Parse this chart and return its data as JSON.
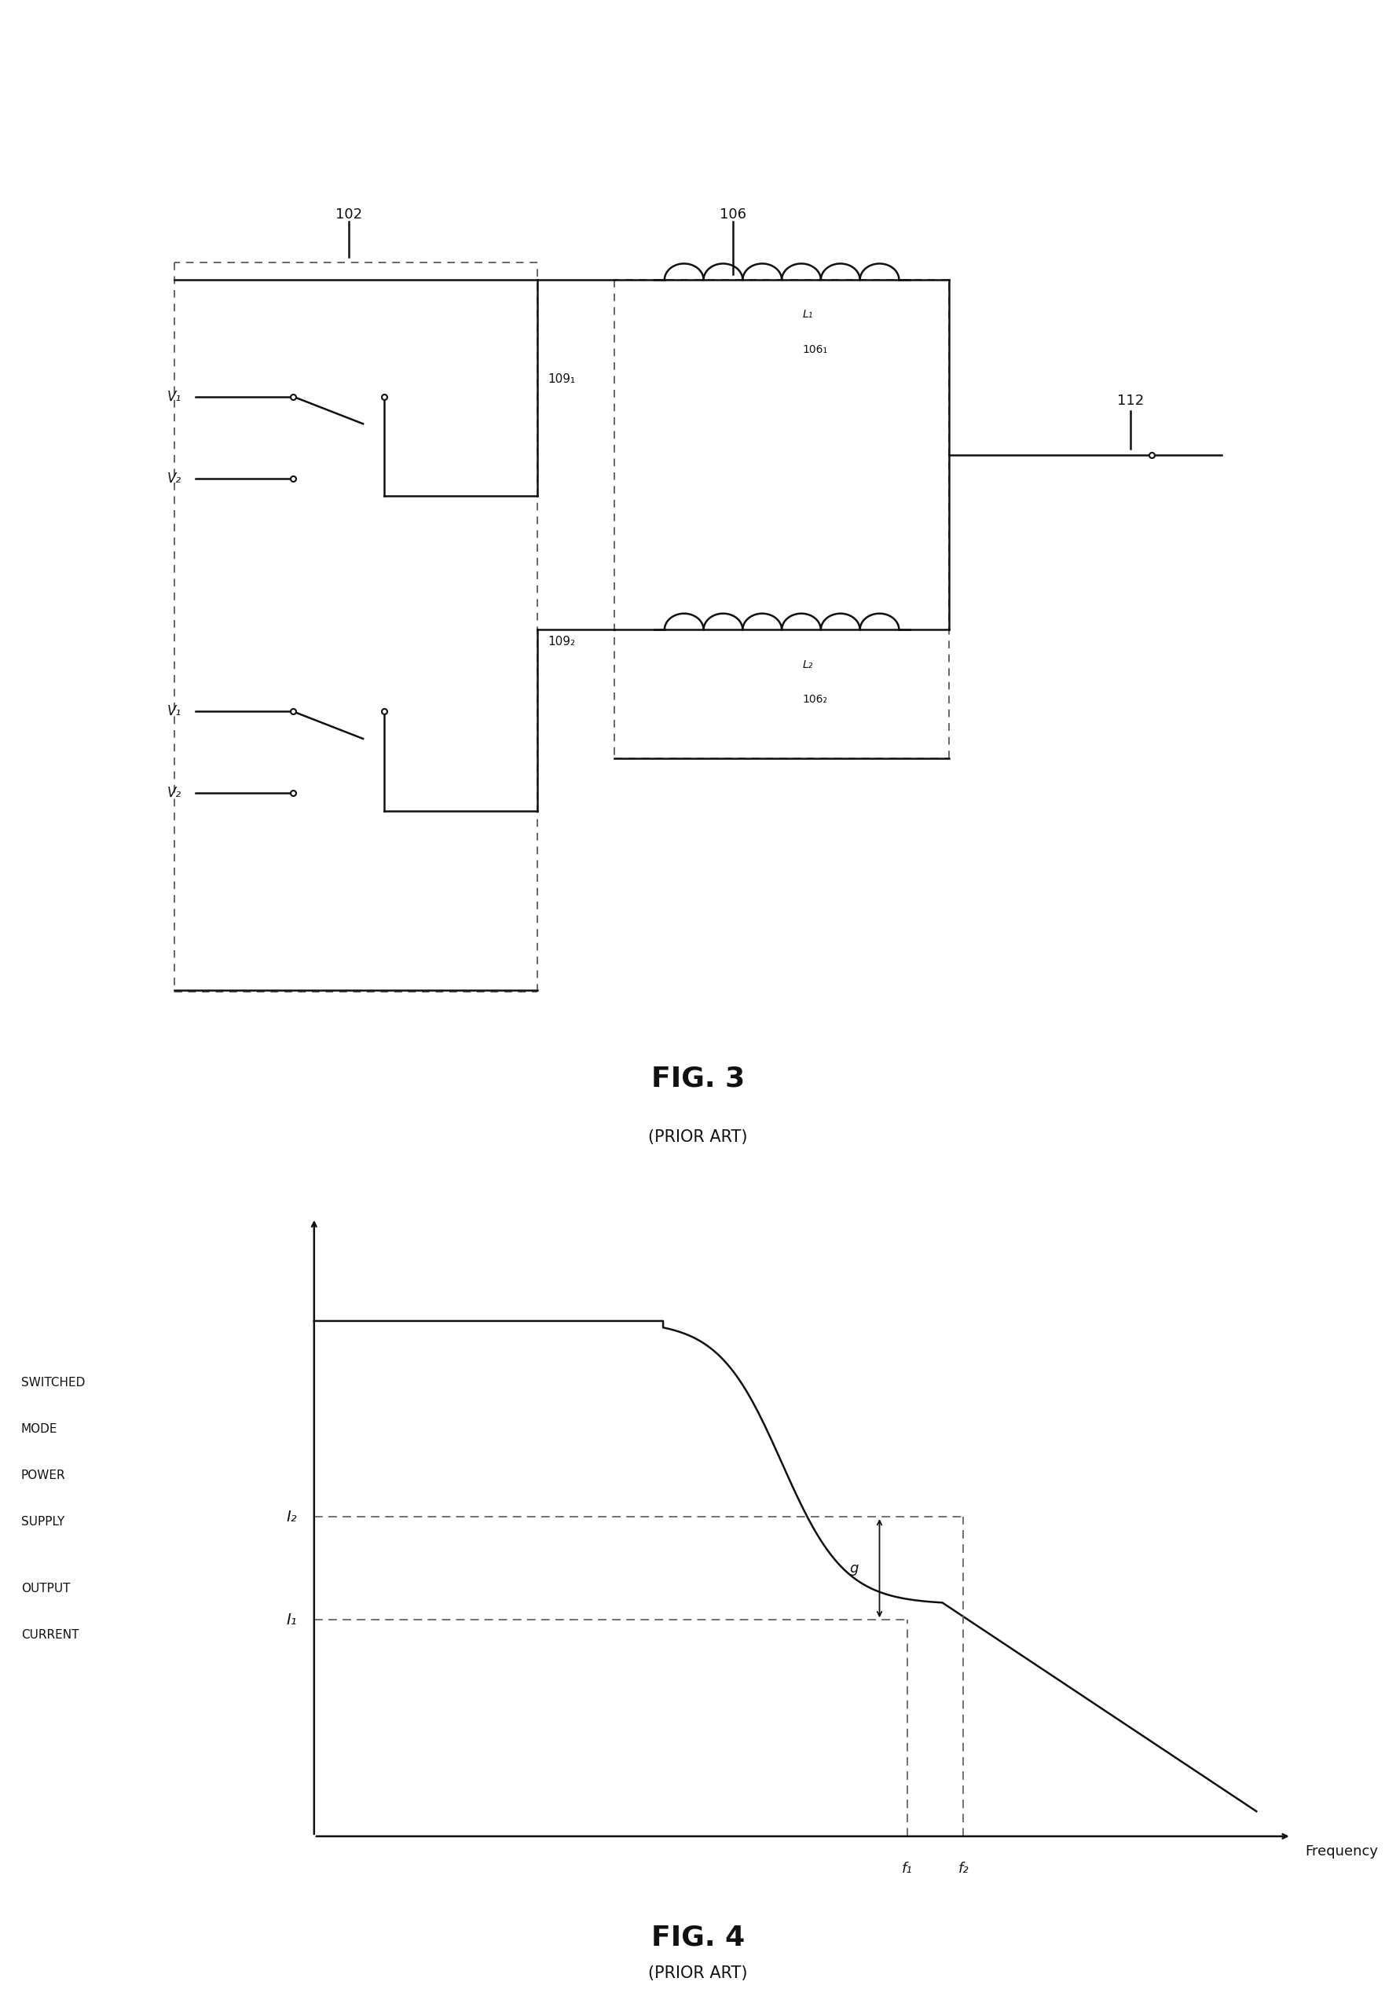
{
  "fig3_title": "FIG. 3",
  "fig3_subtitle": "(PRIOR ART)",
  "fig4_title": "FIG. 4",
  "fig4_subtitle": "(PRIOR ART)",
  "background_color": "#ffffff",
  "line_color": "#111111",
  "dashed_color": "#666666",
  "text_color": "#111111",
  "fig4_xlabel": "Frequency",
  "fig4_I2_label": "I₂",
  "fig4_I1_label": "I₁",
  "fig4_g_label": "g",
  "fig4_f1_label": "f₁",
  "fig4_f2_label": "f₂",
  "ref_102": "102",
  "ref_106": "106",
  "ref_109_1": "109₁",
  "ref_109_2": "109₂",
  "ref_112": "112",
  "ref_1061": "106₁",
  "ref_1062": "106₂",
  "ref_L1": "L₁",
  "ref_L2": "L₂",
  "ref_V1a": "V₁",
  "ref_V2a": "V₂",
  "ref_V1b": "V₁",
  "ref_V2b": "V₂",
  "ylabel_switched": "SWITCHED",
  "ylabel_mode": "MODE",
  "ylabel_power": "POWER",
  "ylabel_supply": "SUPPLY",
  "ylabel_output": "OUTPUT",
  "ylabel_current": "CURRENT"
}
